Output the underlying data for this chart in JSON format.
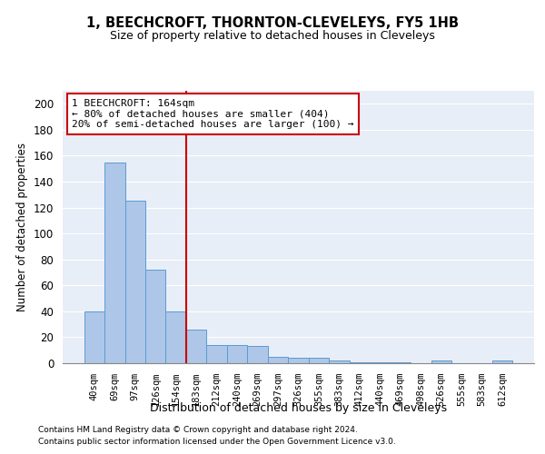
{
  "title": "1, BEECHCROFT, THORNTON-CLEVELEYS, FY5 1HB",
  "subtitle": "Size of property relative to detached houses in Cleveleys",
  "xlabel": "Distribution of detached houses by size in Cleveleys",
  "ylabel": "Number of detached properties",
  "categories": [
    "40sqm",
    "69sqm",
    "97sqm",
    "126sqm",
    "154sqm",
    "183sqm",
    "212sqm",
    "240sqm",
    "269sqm",
    "297sqm",
    "326sqm",
    "355sqm",
    "383sqm",
    "412sqm",
    "440sqm",
    "469sqm",
    "498sqm",
    "526sqm",
    "555sqm",
    "583sqm",
    "612sqm"
  ],
  "values": [
    40,
    155,
    125,
    72,
    40,
    26,
    14,
    14,
    13,
    5,
    4,
    4,
    2,
    1,
    1,
    1,
    0,
    2,
    0,
    0,
    2
  ],
  "bar_color": "#aec6e8",
  "bar_edge_color": "#5b9bd5",
  "vline_color": "#cc0000",
  "annotation_text": "1 BEECHCROFT: 164sqm\n← 80% of detached houses are smaller (404)\n20% of semi-detached houses are larger (100) →",
  "annotation_box_color": "#ffffff",
  "annotation_box_edge": "#cc0000",
  "ylim": [
    0,
    210
  ],
  "yticks": [
    0,
    20,
    40,
    60,
    80,
    100,
    120,
    140,
    160,
    180,
    200
  ],
  "bg_color": "#e8eef7",
  "footer1": "Contains HM Land Registry data © Crown copyright and database right 2024.",
  "footer2": "Contains public sector information licensed under the Open Government Licence v3.0."
}
